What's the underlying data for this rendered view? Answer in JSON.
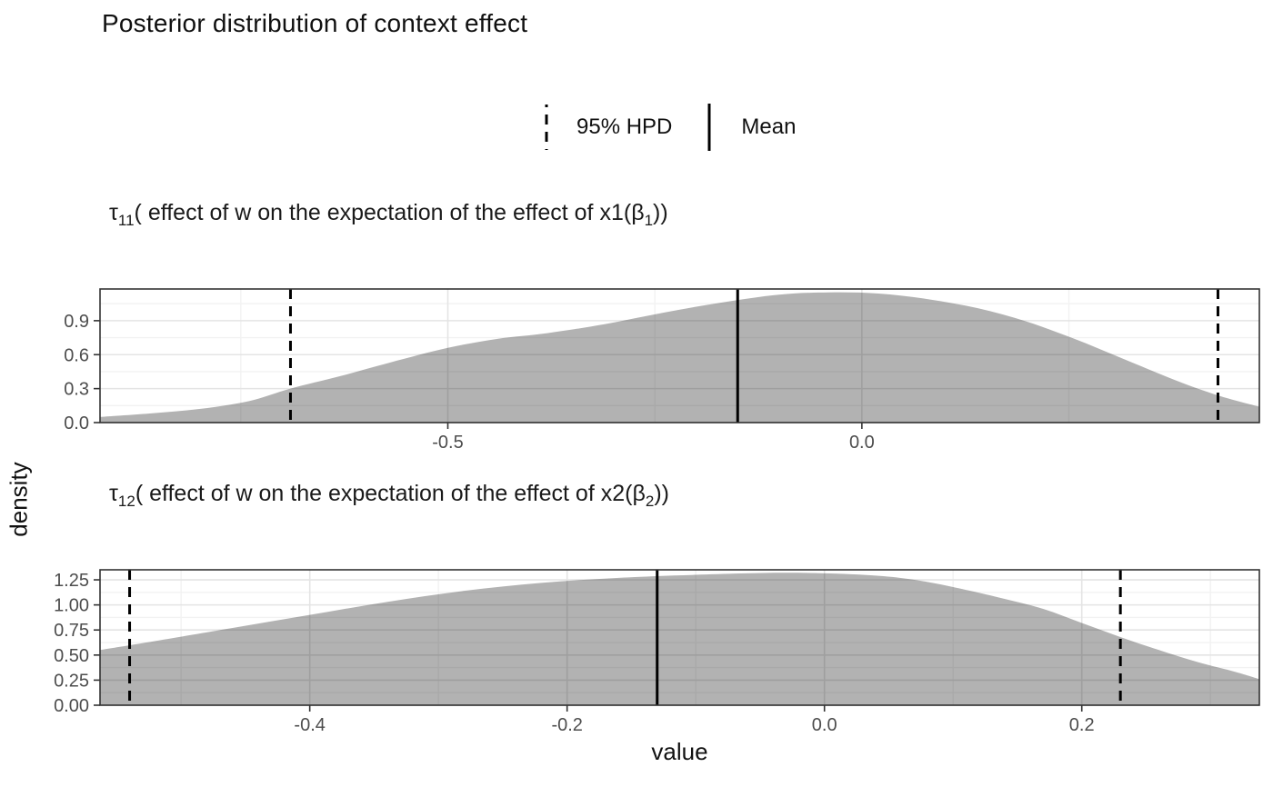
{
  "title": "Posterior distribution of context effect",
  "legend": {
    "items": [
      {
        "icon": "dashed-line",
        "label": "95% HPD"
      },
      {
        "icon": "solid-line",
        "label": "Mean"
      }
    ]
  },
  "axis": {
    "x_label": "value",
    "y_label": "density"
  },
  "colors": {
    "fill": "rgba(0,0,0,0.30)",
    "line": "#000000",
    "grid_major": "#e4e4e4",
    "grid_minor": "#f2f2f2",
    "border": "#333333",
    "tick_mark": "#333333",
    "tick_text": "#4d4d4d"
  },
  "chart_data": [
    {
      "type": "area",
      "title": [
        {
          "t": "τ",
          "sub": "11"
        },
        {
          "t": "( effect of w on the expectation of the effect of x1("
        },
        {
          "t": "β",
          "sub": "1"
        },
        {
          "t": "))"
        }
      ],
      "xlabel": "value",
      "ylabel": "density",
      "xlim": [
        -0.92,
        0.48
      ],
      "ylim": [
        0,
        1.18
      ],
      "x_ticks": [
        {
          "v": -0.5,
          "label": "-0.5"
        },
        {
          "v": 0,
          "label": "0.0"
        }
      ],
      "x_minor": [
        -0.75,
        -0.25,
        0.25
      ],
      "y_ticks": [
        {
          "v": 0,
          "label": "0.0"
        },
        {
          "v": 0.3,
          "label": "0.3"
        },
        {
          "v": 0.6,
          "label": "0.6"
        },
        {
          "v": 0.9,
          "label": "0.9"
        }
      ],
      "y_minor": [
        0.15,
        0.45,
        0.75,
        1.05
      ],
      "hpd_95": [
        -0.69,
        0.43
      ],
      "mean": -0.15,
      "density_points": [
        [
          -0.92,
          0.05
        ],
        [
          -0.86,
          0.08
        ],
        [
          -0.8,
          0.12
        ],
        [
          -0.74,
          0.19
        ],
        [
          -0.69,
          0.3
        ],
        [
          -0.63,
          0.41
        ],
        [
          -0.57,
          0.53
        ],
        [
          -0.5,
          0.66
        ],
        [
          -0.44,
          0.74
        ],
        [
          -0.38,
          0.79
        ],
        [
          -0.31,
          0.87
        ],
        [
          -0.24,
          0.97
        ],
        [
          -0.17,
          1.06
        ],
        [
          -0.1,
          1.13
        ],
        [
          -0.04,
          1.15
        ],
        [
          0.02,
          1.14
        ],
        [
          0.08,
          1.09
        ],
        [
          0.14,
          1.01
        ],
        [
          0.2,
          0.89
        ],
        [
          0.26,
          0.73
        ],
        [
          0.32,
          0.55
        ],
        [
          0.38,
          0.37
        ],
        [
          0.43,
          0.24
        ],
        [
          0.48,
          0.14
        ]
      ]
    },
    {
      "type": "area",
      "title": [
        {
          "t": "τ",
          "sub": "12"
        },
        {
          "t": "( effect of w on the expectation of the effect of x2("
        },
        {
          "t": "β",
          "sub": "2"
        },
        {
          "t": "))"
        }
      ],
      "xlabel": "value",
      "ylabel": "density",
      "xlim": [
        -0.563,
        0.338
      ],
      "ylim": [
        0,
        1.35
      ],
      "x_ticks": [
        {
          "v": -0.4,
          "label": "-0.4"
        },
        {
          "v": -0.2,
          "label": "-0.2"
        },
        {
          "v": 0,
          "label": "0.0"
        },
        {
          "v": 0.2,
          "label": "0.2"
        }
      ],
      "x_minor": [
        -0.5,
        -0.3,
        -0.1,
        0.1,
        0.3
      ],
      "y_ticks": [
        {
          "v": 0,
          "label": "0.00"
        },
        {
          "v": 0.25,
          "label": "0.25"
        },
        {
          "v": 0.5,
          "label": "0.50"
        },
        {
          "v": 0.75,
          "label": "0.75"
        },
        {
          "v": 1.0,
          "label": "1.00"
        },
        {
          "v": 1.25,
          "label": "1.25"
        }
      ],
      "y_minor": [
        0.125,
        0.375,
        0.625,
        0.875,
        1.125
      ],
      "hpd_95": [
        -0.54,
        0.23
      ],
      "mean": -0.13,
      "density_points": [
        [
          -0.563,
          0.55
        ],
        [
          -0.52,
          0.64
        ],
        [
          -0.46,
          0.77
        ],
        [
          -0.4,
          0.9
        ],
        [
          -0.34,
          1.03
        ],
        [
          -0.28,
          1.14
        ],
        [
          -0.22,
          1.22
        ],
        [
          -0.16,
          1.27
        ],
        [
          -0.1,
          1.3
        ],
        [
          -0.03,
          1.32
        ],
        [
          0.03,
          1.3
        ],
        [
          0.07,
          1.25
        ],
        [
          0.11,
          1.15
        ],
        [
          0.14,
          1.06
        ],
        [
          0.17,
          0.96
        ],
        [
          0.2,
          0.82
        ],
        [
          0.23,
          0.68
        ],
        [
          0.26,
          0.55
        ],
        [
          0.29,
          0.43
        ],
        [
          0.32,
          0.33
        ],
        [
          0.338,
          0.26
        ]
      ]
    }
  ]
}
